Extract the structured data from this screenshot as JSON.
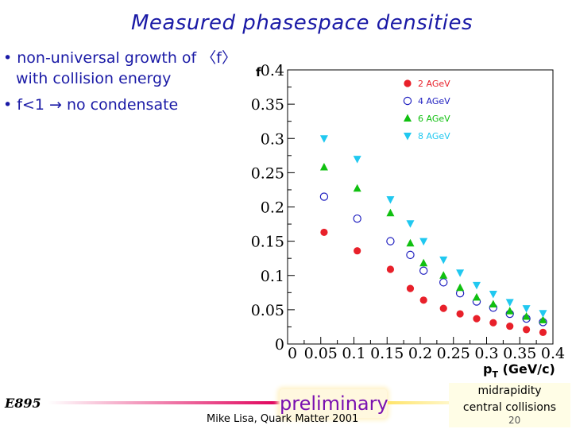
{
  "slide": {
    "title": "Measured phasespace densities",
    "bullet1_line1": "• non-universal growth of 〈f〉",
    "bullet1_line2": "with collision energy",
    "bullet2": "• f<1 → no condensate",
    "footer_left": "E895",
    "preliminary": "preliminary",
    "credit": "Mike Lisa, Quark Matter 2001",
    "note_line1": "midrapidity",
    "note_line2": "central collisions",
    "page_number": "20"
  },
  "chart_data": {
    "type": "scatter",
    "title": "",
    "xlabel": "p_T (GeV/c)",
    "ylabel": "f",
    "xlim": [
      0,
      0.4
    ],
    "ylim": [
      0,
      0.4
    ],
    "x_ticks": [
      "0",
      "0.05",
      "0.1",
      "0.15",
      "0.2",
      "0.25",
      "0.3",
      "0.35",
      "0.4"
    ],
    "y_ticks": [
      "0",
      "0.05",
      "0.1",
      "0.15",
      "0.2",
      "0.25",
      "0.3",
      "0.35",
      "0.4"
    ],
    "legend_position": "top-right",
    "series": [
      {
        "name": "2 AGeV",
        "marker": "filled-circle",
        "color": "#e8202a",
        "points": [
          [
            0.055,
            0.163
          ],
          [
            0.105,
            0.136
          ],
          [
            0.155,
            0.109
          ],
          [
            0.185,
            0.081
          ],
          [
            0.205,
            0.064
          ],
          [
            0.235,
            0.052
          ],
          [
            0.26,
            0.044
          ],
          [
            0.285,
            0.037
          ],
          [
            0.31,
            0.031
          ],
          [
            0.335,
            0.026
          ],
          [
            0.36,
            0.021
          ],
          [
            0.385,
            0.017
          ]
        ]
      },
      {
        "name": "4 AGeV",
        "marker": "open-circle",
        "color": "#2020c0",
        "points": [
          [
            0.055,
            0.215
          ],
          [
            0.105,
            0.183
          ],
          [
            0.155,
            0.15
          ],
          [
            0.185,
            0.13
          ],
          [
            0.205,
            0.107
          ],
          [
            0.235,
            0.09
          ],
          [
            0.26,
            0.074
          ],
          [
            0.285,
            0.062
          ],
          [
            0.31,
            0.053
          ],
          [
            0.335,
            0.044
          ],
          [
            0.36,
            0.037
          ],
          [
            0.385,
            0.032
          ]
        ]
      },
      {
        "name": "6 AGeV",
        "marker": "triangle-up",
        "color": "#10c010",
        "points": [
          [
            0.055,
            0.258
          ],
          [
            0.105,
            0.227
          ],
          [
            0.155,
            0.191
          ],
          [
            0.185,
            0.147
          ],
          [
            0.205,
            0.118
          ],
          [
            0.235,
            0.1
          ],
          [
            0.26,
            0.082
          ],
          [
            0.285,
            0.068
          ],
          [
            0.31,
            0.058
          ],
          [
            0.335,
            0.048
          ],
          [
            0.36,
            0.04
          ],
          [
            0.385,
            0.035
          ]
        ]
      },
      {
        "name": "8 AGeV",
        "marker": "triangle-down",
        "color": "#20c8f0",
        "points": [
          [
            0.055,
            0.3
          ],
          [
            0.105,
            0.27
          ],
          [
            0.155,
            0.211
          ],
          [
            0.185,
            0.176
          ],
          [
            0.205,
            0.15
          ],
          [
            0.235,
            0.123
          ],
          [
            0.26,
            0.104
          ],
          [
            0.285,
            0.086
          ],
          [
            0.31,
            0.073
          ],
          [
            0.335,
            0.061
          ],
          [
            0.36,
            0.052
          ],
          [
            0.385,
            0.045
          ]
        ]
      }
    ]
  }
}
